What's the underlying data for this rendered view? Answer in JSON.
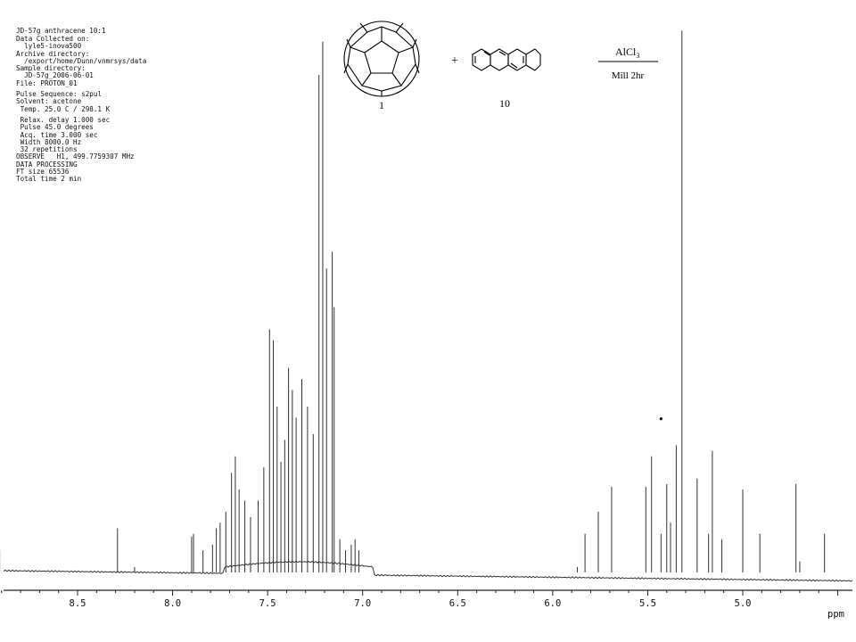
{
  "header": {
    "title": "JD-57g anthracene 10:1",
    "params": [
      "Data Collected on:",
      "  lyle5-inova500",
      "Archive directory:",
      "  /export/home/Dunn/vnmrsys/data",
      "Sample directory:",
      "  JD-57g_2006-06-01",
      "File: PROTON_01",
      "",
      "Pulse Sequence: s2pul",
      "Solvent: acetone",
      " Temp. 25.0 C / 298.1 K",
      "",
      " Relax. delay 1.000 sec",
      " Pulse 45.0 degrees",
      " Acq. time 3.000 sec",
      " Width 8000.0 Hz",
      " 32 repetitions",
      "OBSERVE   H1, 499.7759307 MHz",
      "DATA PROCESSING",
      "FT size 65536",
      "Total time 2 min"
    ]
  },
  "scheme": {
    "reactant1_label": "1",
    "plus": "+",
    "reactant2_label": "10",
    "reagent": "AlCl",
    "reagent_subscript": "3",
    "condition": "Mill 2hr",
    "molecule1_icon": "fullerene-c60-icon",
    "molecule2_icon": "anthracene-icon"
  },
  "chart_data": {
    "type": "line",
    "title": "",
    "xlabel": "ppm",
    "ylabel": "",
    "xlim": [
      8.95,
      4.05
    ],
    "x_reversed": true,
    "ylim": [
      0,
      1.0
    ],
    "grid": false,
    "ticks": [
      8.5,
      8.0,
      7.5,
      7.0,
      6.5,
      6.0,
      5.5,
      5.0
    ],
    "tick_labels": [
      "8.5",
      "8.0",
      "7.5",
      "7.0",
      "6.5",
      "6.0",
      "5.5",
      "5.0"
    ],
    "marker": {
      "ppm": 5.43,
      "height": 0.27,
      "symbol": "•"
    },
    "peaks": [
      {
        "ppm": 8.91,
        "h": 0.04
      },
      {
        "ppm": 8.29,
        "h": 0.08
      },
      {
        "ppm": 8.2,
        "h": 0.01
      },
      {
        "ppm": 7.9,
        "h": 0.065
      },
      {
        "ppm": 7.89,
        "h": 0.07
      },
      {
        "ppm": 7.84,
        "h": 0.04
      },
      {
        "ppm": 7.79,
        "h": 0.05
      },
      {
        "ppm": 7.77,
        "h": 0.08
      },
      {
        "ppm": 7.75,
        "h": 0.09
      },
      {
        "ppm": 7.72,
        "h": 0.11
      },
      {
        "ppm": 7.69,
        "h": 0.18
      },
      {
        "ppm": 7.67,
        "h": 0.21
      },
      {
        "ppm": 7.65,
        "h": 0.15
      },
      {
        "ppm": 7.62,
        "h": 0.13
      },
      {
        "ppm": 7.59,
        "h": 0.1
      },
      {
        "ppm": 7.55,
        "h": 0.13
      },
      {
        "ppm": 7.52,
        "h": 0.19
      },
      {
        "ppm": 7.49,
        "h": 0.44
      },
      {
        "ppm": 7.47,
        "h": 0.42
      },
      {
        "ppm": 7.45,
        "h": 0.3
      },
      {
        "ppm": 7.43,
        "h": 0.2
      },
      {
        "ppm": 7.41,
        "h": 0.24
      },
      {
        "ppm": 7.39,
        "h": 0.37
      },
      {
        "ppm": 7.37,
        "h": 0.33
      },
      {
        "ppm": 7.35,
        "h": 0.28
      },
      {
        "ppm": 7.32,
        "h": 0.35
      },
      {
        "ppm": 7.29,
        "h": 0.3
      },
      {
        "ppm": 7.26,
        "h": 0.25
      },
      {
        "ppm": 7.23,
        "h": 0.9
      },
      {
        "ppm": 7.21,
        "h": 0.96
      },
      {
        "ppm": 7.19,
        "h": 0.55
      },
      {
        "ppm": 7.16,
        "h": 0.58
      },
      {
        "ppm": 7.15,
        "h": 0.48
      },
      {
        "ppm": 7.12,
        "h": 0.06
      },
      {
        "ppm": 7.09,
        "h": 0.04
      },
      {
        "ppm": 7.06,
        "h": 0.05
      },
      {
        "ppm": 7.04,
        "h": 0.06
      },
      {
        "ppm": 7.02,
        "h": 0.04
      },
      {
        "ppm": 5.87,
        "h": 0.01
      },
      {
        "ppm": 5.83,
        "h": 0.07
      },
      {
        "ppm": 5.76,
        "h": 0.11
      },
      {
        "ppm": 5.69,
        "h": 0.155
      },
      {
        "ppm": 5.51,
        "h": 0.155
      },
      {
        "ppm": 5.48,
        "h": 0.21
      },
      {
        "ppm": 5.43,
        "h": 0.07
      },
      {
        "ppm": 5.4,
        "h": 0.16
      },
      {
        "ppm": 5.38,
        "h": 0.09
      },
      {
        "ppm": 5.35,
        "h": 0.23
      },
      {
        "ppm": 5.32,
        "h": 0.98
      },
      {
        "ppm": 5.24,
        "h": 0.17
      },
      {
        "ppm": 5.18,
        "h": 0.07
      },
      {
        "ppm": 5.16,
        "h": 0.22
      },
      {
        "ppm": 5.11,
        "h": 0.06
      },
      {
        "ppm": 5.0,
        "h": 0.15
      },
      {
        "ppm": 4.91,
        "h": 0.07
      },
      {
        "ppm": 4.72,
        "h": 0.16
      },
      {
        "ppm": 4.7,
        "h": 0.02
      },
      {
        "ppm": 4.57,
        "h": 0.07
      }
    ]
  }
}
